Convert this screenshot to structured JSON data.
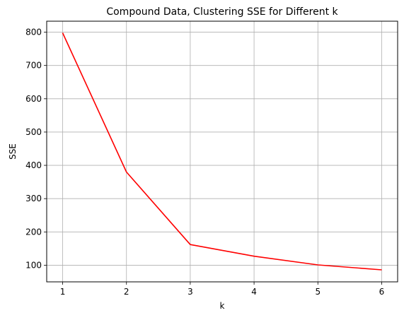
{
  "chart_data": {
    "type": "line",
    "title": "Compound Data, Clustering SSE for Different k",
    "xlabel": "k",
    "ylabel": "SSE",
    "x": [
      1,
      2,
      3,
      4,
      5,
      6
    ],
    "series": [
      {
        "values": [
          798,
          380,
          162,
          127,
          101,
          86
        ],
        "color": "#ff0000"
      }
    ],
    "xticks": [
      "1",
      "2",
      "3",
      "4",
      "5",
      "6"
    ],
    "yticks": [
      "100",
      "200",
      "300",
      "400",
      "500",
      "600",
      "700",
      "800"
    ],
    "xlim": [
      0.75,
      6.25
    ],
    "ylim": [
      50,
      833
    ],
    "grid": true,
    "grid_color": "#b0b0b0"
  }
}
